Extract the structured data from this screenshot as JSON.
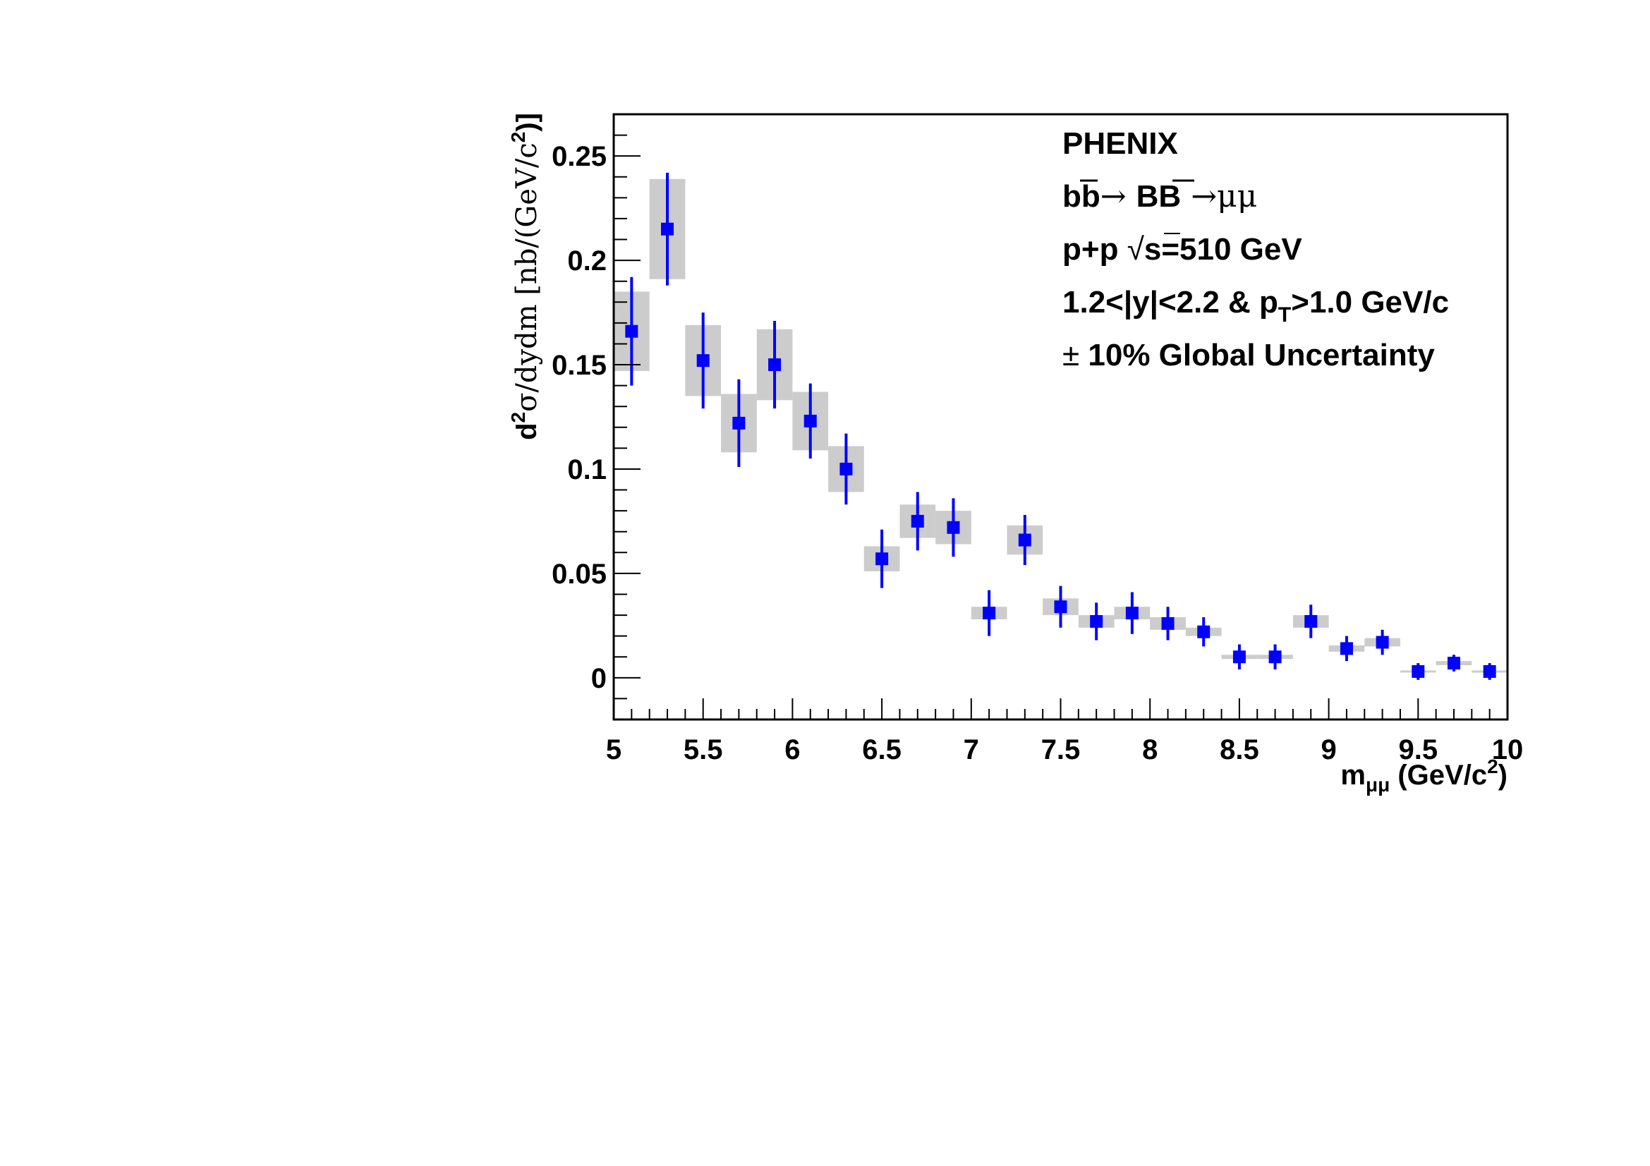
{
  "chart_data": {
    "type": "scatter",
    "xlim": [
      5,
      10
    ],
    "ylim": [
      -0.02,
      0.27
    ],
    "x_ticks": [
      "5",
      "5.5",
      "6",
      "6.5",
      "7",
      "7.5",
      "8",
      "8.5",
      "9",
      "9.5",
      "10"
    ],
    "y_ticks": [
      "0",
      "0.05",
      "0.1",
      "0.15",
      "0.2",
      "0.25"
    ],
    "xlabel": {
      "main": "m",
      "sub": "μμ",
      "unit": " (GeV/c",
      "sup": "2",
      "close": ")"
    },
    "ylabel": {
      "d": "d",
      "sup1": "2",
      "mid": "σ/dydm [nb/(GeV/c",
      "sup2": "2",
      "close": ")]"
    },
    "legend": {
      "line1": "PHENIX",
      "line2": {
        "b": "b",
        "bbar": "b",
        "arrow1": "→ ",
        "B": "B",
        "Bbar": "B",
        "arrow2": " →μμ"
      },
      "line3": {
        "pp": "p+p ",
        "sqrt": "√",
        "s": "s",
        "rest": "=510 GeV"
      },
      "line4": {
        "pre": "1.2<|y|<2.2 & p",
        "sub": "T",
        "post": ">1.0 GeV/c"
      },
      "line5": {
        "pm": "±",
        "text": " 10% Global Uncertainty"
      }
    },
    "colors": {
      "marker": "#0000ff",
      "syst_box": "#cccccc",
      "axis": "#000000"
    },
    "grid": false,
    "series": [
      {
        "x": [
          5.1,
          5.3,
          5.5,
          5.7,
          5.9,
          6.1,
          6.3,
          6.5,
          6.7,
          6.9,
          7.1,
          7.3,
          7.5,
          7.7,
          7.9,
          8.1,
          8.3,
          8.5,
          8.7,
          8.9,
          9.1,
          9.3,
          9.5,
          9.7,
          9.9
        ],
        "y": [
          0.166,
          0.215,
          0.152,
          0.122,
          0.15,
          0.123,
          0.1,
          0.057,
          0.075,
          0.072,
          0.031,
          0.066,
          0.034,
          0.027,
          0.031,
          0.026,
          0.022,
          0.01,
          0.01,
          0.027,
          0.014,
          0.017,
          0.003,
          0.007,
          0.003
        ],
        "stat_err": [
          0.026,
          0.027,
          0.023,
          0.021,
          0.021,
          0.018,
          0.017,
          0.014,
          0.014,
          0.014,
          0.011,
          0.012,
          0.01,
          0.009,
          0.01,
          0.008,
          0.007,
          0.006,
          0.006,
          0.008,
          0.006,
          0.006,
          0.004,
          0.004,
          0.004
        ],
        "syst_err": [
          0.019,
          0.024,
          0.017,
          0.014,
          0.017,
          0.014,
          0.011,
          0.006,
          0.008,
          0.008,
          0.003,
          0.007,
          0.004,
          0.003,
          0.003,
          0.003,
          0.002,
          0.001,
          0.001,
          0.003,
          0.0015,
          0.002,
          0.0005,
          0.001,
          0.0005
        ]
      }
    ]
  }
}
